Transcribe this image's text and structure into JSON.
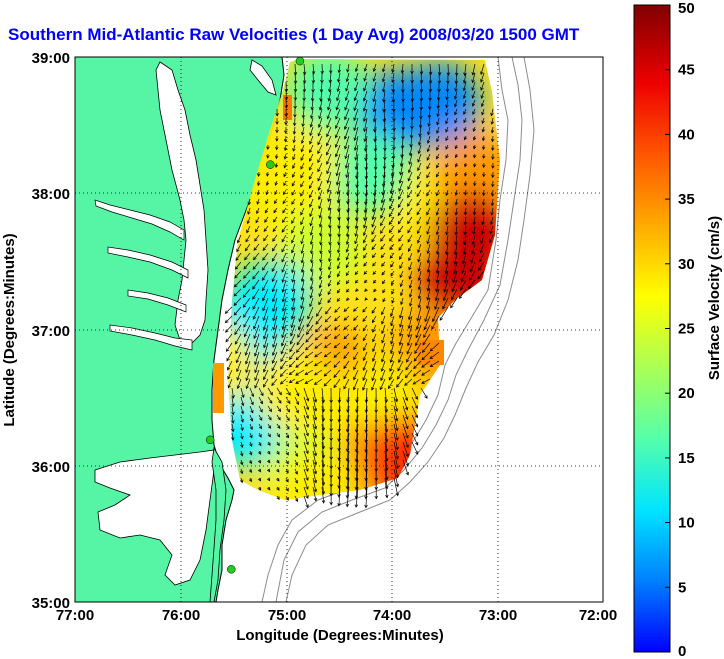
{
  "title": "Southern Mid-Atlantic Raw Velocities (1 Day Avg) 2008/03/20 1500 GMT",
  "colors": {
    "title": "#0000ff",
    "land": "#55f5a5",
    "ocean_background": "#ffffff",
    "coastline": "#000000",
    "bathymetry": "#8c8c8c",
    "station": "#22cc22",
    "grid": "#000000",
    "arrows": "#000000",
    "colormap": [
      "#0000ff",
      "#0088ff",
      "#00eeff",
      "#55ffaa",
      "#ccff33",
      "#ffee00",
      "#ff9900",
      "#ff3300",
      "#cc0000",
      "#800000"
    ]
  },
  "chart_data": {
    "type": "heatmap",
    "map_type": "surface current velocity field with vector arrows",
    "xlabel": "Longitude (Degrees:Minutes)",
    "ylabel": "Latitude (Degrees:Minutes)",
    "xlim": [
      -77,
      -72
    ],
    "ylim": [
      35,
      39
    ],
    "xticks": [
      "77:00",
      "76:00",
      "75:00",
      "74:00",
      "73:00",
      "72:00"
    ],
    "yticks": [
      "35:00",
      "36:00",
      "37:00",
      "38:00",
      "39:00"
    ],
    "grid": "dotted",
    "colorbar": {
      "label": "Surface Velocity (cm/s)",
      "min": 0,
      "max": 50,
      "ticks": [
        "0",
        "5",
        "10",
        "15",
        "20",
        "25",
        "30",
        "35",
        "40",
        "45",
        "50"
      ]
    },
    "stations": [
      {
        "lon": -74.87,
        "lat": 38.97
      },
      {
        "lon": -75.15,
        "lat": 38.21
      },
      {
        "lon": -75.72,
        "lat": 36.19
      },
      {
        "lon": -75.52,
        "lat": 35.24
      }
    ],
    "velocity_regions": [
      {
        "lon": -73.95,
        "lat": 38.6,
        "speed": 8
      },
      {
        "lon": -73.55,
        "lat": 38.65,
        "speed": 6
      },
      {
        "lon": -74.6,
        "lat": 38.75,
        "speed": 14
      },
      {
        "lon": -74.2,
        "lat": 38.15,
        "speed": 16
      },
      {
        "lon": -74.9,
        "lat": 38.2,
        "speed": 25
      },
      {
        "lon": -75.05,
        "lat": 38.05,
        "speed": 27
      },
      {
        "lon": -74.65,
        "lat": 37.6,
        "speed": 20
      },
      {
        "lon": -73.55,
        "lat": 37.9,
        "speed": 30
      },
      {
        "lon": -73.2,
        "lat": 38.15,
        "speed": 36
      },
      {
        "lon": -73.25,
        "lat": 37.7,
        "speed": 45
      },
      {
        "lon": -73.35,
        "lat": 37.35,
        "speed": 42
      },
      {
        "lon": -73.6,
        "lat": 36.85,
        "speed": 33
      },
      {
        "lon": -75.15,
        "lat": 37.2,
        "speed": 9
      },
      {
        "lon": -75.4,
        "lat": 37.0,
        "speed": 10
      },
      {
        "lon": -75.4,
        "lat": 36.3,
        "speed": 10
      },
      {
        "lon": -74.55,
        "lat": 36.7,
        "speed": 31
      },
      {
        "lon": -74.9,
        "lat": 36.55,
        "speed": 28
      },
      {
        "lon": -74.1,
        "lat": 36.5,
        "speed": 25
      },
      {
        "lon": -74.35,
        "lat": 36.25,
        "speed": 28
      },
      {
        "lon": -74.0,
        "lat": 35.95,
        "speed": 40
      },
      {
        "lon": -74.2,
        "lat": 36.0,
        "speed": 34
      },
      {
        "lon": -73.85,
        "lat": 36.05,
        "speed": 38
      },
      {
        "lon": -74.8,
        "lat": 35.95,
        "speed": 20
      },
      {
        "lon": -74.7,
        "lat": 35.8,
        "speed": 30
      },
      {
        "lon": -75.7,
        "lat": 36.75,
        "speed": 30
      }
    ]
  }
}
